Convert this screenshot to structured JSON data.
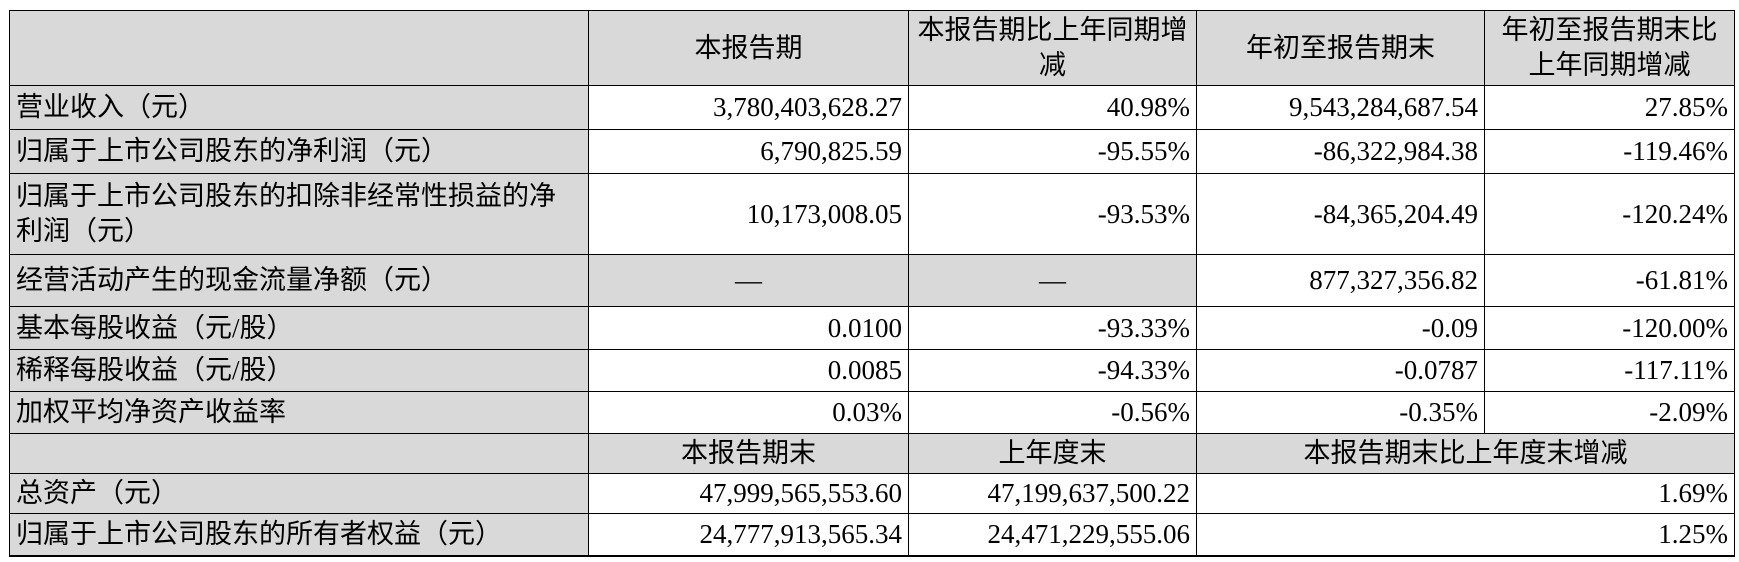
{
  "colors": {
    "header_bg": "#d9d9d9",
    "label_bg": "#d9d9d9",
    "value_bg": "#ffffff",
    "border": "#000000",
    "text": "#000000"
  },
  "table": {
    "period_header": {
      "label": "",
      "current": "本报告期",
      "current_yoy": "本报告期比上年同期增减",
      "ytd": "年初至报告期末",
      "ytd_yoy": "年初至报告期末比上年同期增减"
    },
    "period_rows": [
      {
        "label": "营业收入（元）",
        "current": "3,780,403,628.27",
        "current_yoy": "40.98%",
        "ytd": "9,543,284,687.54",
        "ytd_yoy": "27.85%"
      },
      {
        "label": "归属于上市公司股东的净利润（元）",
        "current": "6,790,825.59",
        "current_yoy": "-95.55%",
        "ytd": "-86,322,984.38",
        "ytd_yoy": "-119.46%"
      },
      {
        "label": "归属于上市公司股东的扣除非经常性损益的净利润（元）",
        "current": "10,173,008.05",
        "current_yoy": "-93.53%",
        "ytd": "-84,365,204.49",
        "ytd_yoy": "-120.24%"
      },
      {
        "label": "经营活动产生的现金流量净额（元）",
        "current": "—",
        "current_yoy": "—",
        "ytd": "877,327,356.82",
        "ytd_yoy": "-61.81%"
      },
      {
        "label": "基本每股收益（元/股）",
        "current": "0.0100",
        "current_yoy": "-93.33%",
        "ytd": "-0.09",
        "ytd_yoy": "-120.00%"
      },
      {
        "label": "稀释每股收益（元/股）",
        "current": "0.0085",
        "current_yoy": "-94.33%",
        "ytd": "-0.0787",
        "ytd_yoy": "-117.11%"
      },
      {
        "label": "加权平均净资产收益率",
        "current": "0.03%",
        "current_yoy": "-0.56%",
        "ytd": "-0.35%",
        "ytd_yoy": "-2.09%"
      }
    ],
    "balance_header": {
      "label": "",
      "end": "本报告期末",
      "prev_end": "上年度末",
      "change": "本报告期末比上年度末增减"
    },
    "balance_rows": [
      {
        "label": "总资产（元）",
        "end": "47,999,565,553.60",
        "prev_end": "47,199,637,500.22",
        "change_blank": "",
        "change": "1.69%"
      },
      {
        "label": "归属于上市公司股东的所有者权益（元）",
        "end": "24,777,913,565.34",
        "prev_end": "24,471,229,555.06",
        "change_blank": "",
        "change": "1.25%"
      }
    ]
  }
}
